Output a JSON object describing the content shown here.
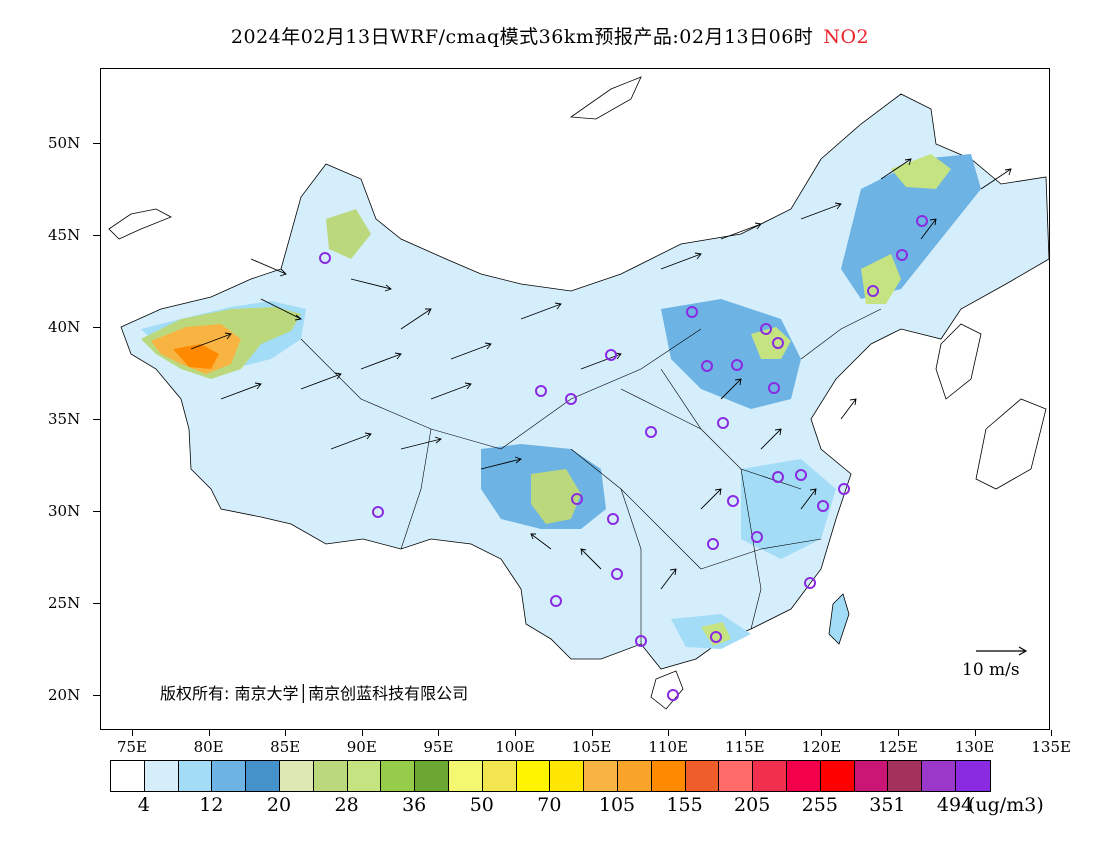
{
  "title": {
    "main": "2024年02月13日WRF/cmaq模式36km预报产品:02月13日06时",
    "pollutant": "NO2",
    "pollutant_color": "#e8232a"
  },
  "axes": {
    "lat_labels": [
      "50N",
      "45N",
      "40N",
      "35N",
      "30N",
      "25N",
      "20N"
    ],
    "lon_labels": [
      "75E",
      "80E",
      "85E",
      "90E",
      "95E",
      "100E",
      "105E",
      "110E",
      "115E",
      "120E",
      "125E",
      "130E",
      "135E"
    ]
  },
  "copyright": "版权所有: 南京大学│南京创蓝科技有限公司",
  "wind_scale": {
    "label": "10 m/s"
  },
  "legend": {
    "colors": [
      "#ffffff",
      "#d4eefc",
      "#a3dcf6",
      "#6db3e3",
      "#4591c9",
      "#dde9b5",
      "#bbd97c",
      "#c6e382",
      "#95cc4a",
      "#6da733",
      "#f4f870",
      "#f3e54f",
      "#fff500",
      "#ffe600",
      "#f8b443",
      "#f8a42a",
      "#ff8a00",
      "#ef5e2a",
      "#ff6a6a",
      "#f1304e",
      "#f3004b",
      "#ff0000",
      "#cb1676",
      "#a4315c",
      "#9a38c9",
      "#8a2be2"
    ],
    "labels": [
      "4",
      "12",
      "20",
      "28",
      "36",
      "50",
      "70",
      "105",
      "155",
      "205",
      "255",
      "351",
      "494"
    ],
    "unit": "(ug/m3)"
  }
}
